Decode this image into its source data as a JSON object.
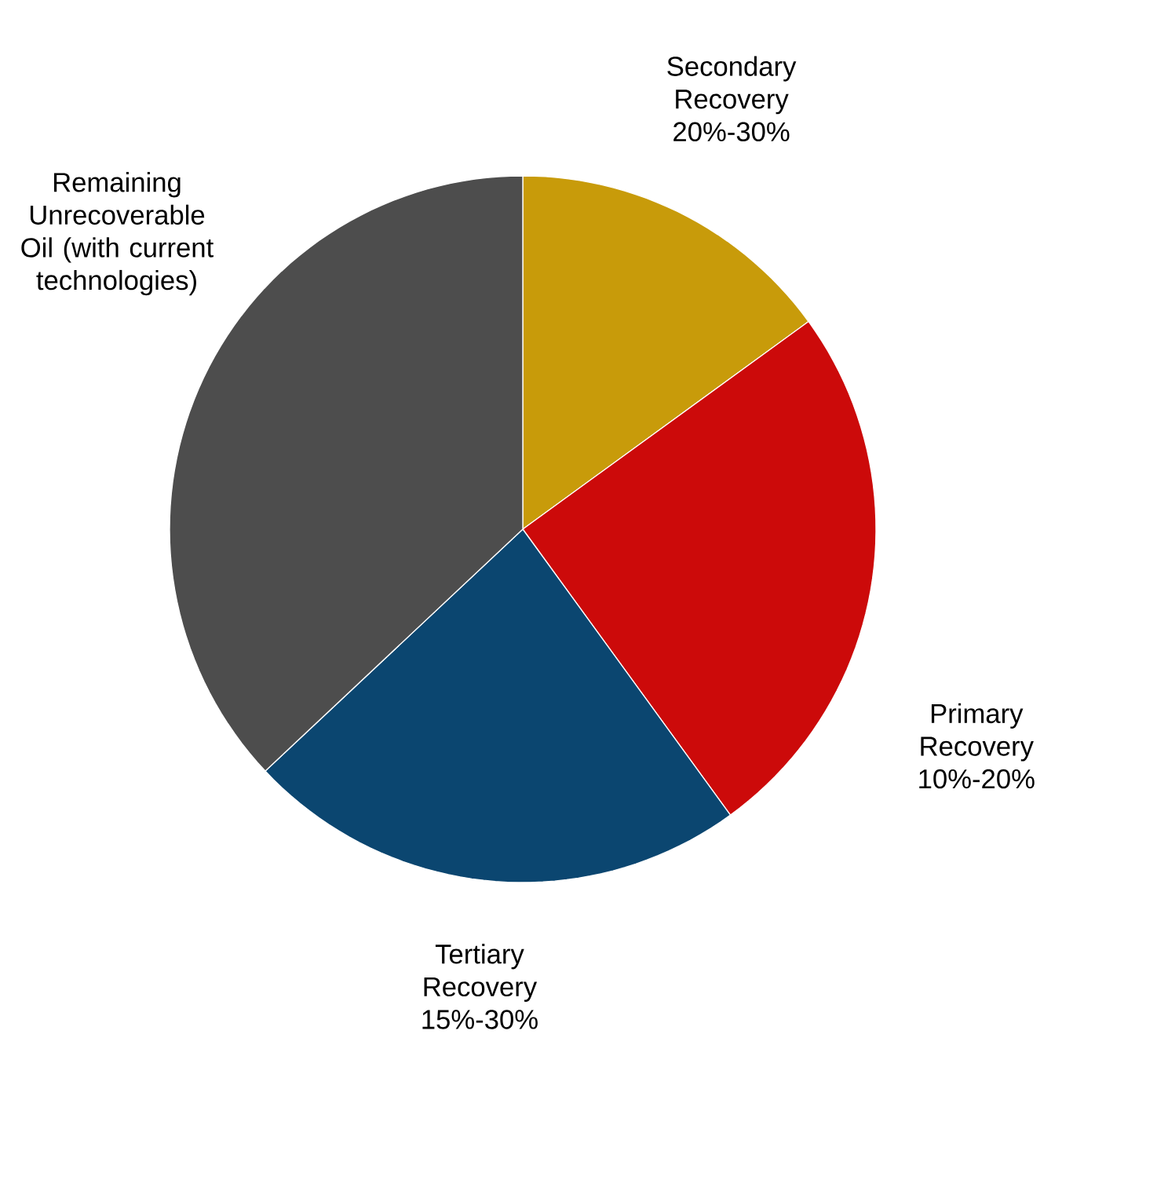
{
  "chart_data": {
    "type": "pie",
    "categories": [
      "Secondary Recovery 20%-30%",
      "Primary Recovery 10%-20%",
      "Tertiary Recovery 15%-30%",
      "Remaining Unrecoverable Oil (with current technologies)"
    ],
    "values": [
      15,
      25,
      23,
      37
    ],
    "colors": [
      "#c89b0a",
      "#cc0a0a",
      "#0b4670",
      "#4d4d4d"
    ]
  }
}
